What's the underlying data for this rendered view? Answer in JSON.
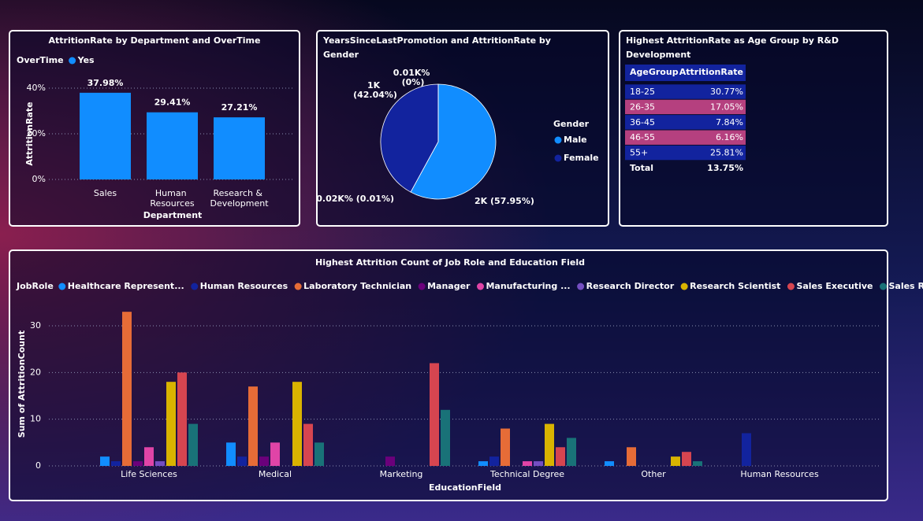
{
  "chart_data": [
    {
      "type": "bar",
      "title": "AttritionRate by Department and OverTime",
      "legend_title": "OverTime",
      "categories": [
        "Sales",
        "Human Resources",
        "Research & Development"
      ],
      "series": [
        {
          "name": "Yes",
          "color": "#118dff",
          "values": [
            37.98,
            29.41,
            27.21
          ],
          "value_labels": [
            "37.98%",
            "29.41%",
            "27.21%"
          ]
        }
      ],
      "ylim": [
        0,
        45
      ],
      "yticks": [
        {
          "value": 0,
          "label": "0%"
        },
        {
          "value": 20,
          "label": "20%"
        },
        {
          "value": 40,
          "label": "40%"
        }
      ],
      "y_label": "AttritionRate",
      "x_label": "Department",
      "grid": true
    },
    {
      "type": "pie",
      "title": "YearsSinceLastPromotion and AttritionRate by Gender",
      "legend_title": "Gender",
      "categories": [
        "Male",
        "Female",
        null,
        null
      ],
      "values": [
        57.95,
        42.04,
        0,
        0.01
      ],
      "value_labels": [
        "2K (57.95%)",
        "1K (42.04%)",
        "0.01K% (0%)",
        "0.02K% (0.01%)"
      ],
      "colors": [
        "#118dff",
        "#12239e",
        "#e66c37",
        "#6b007b"
      ]
    },
    {
      "type": "table",
      "title": "Highest AttritionRate as Age Group by R&D Development",
      "columns": [
        "AgeGroup",
        "AttritionRate"
      ],
      "rows": [
        [
          "18-25",
          "30.77%"
        ],
        [
          "26-35",
          "17.05%"
        ],
        [
          "36-45",
          "7.84%"
        ],
        [
          "46-55",
          "6.16%"
        ],
        [
          "55+",
          "25.81%"
        ]
      ],
      "total": [
        "Total",
        "13.75%"
      ]
    },
    {
      "type": "bar",
      "title": "Highest Attrition Count of Job Role and Education Field",
      "legend_title": "JobRole",
      "categories": [
        "Life Sciences",
        "Medical",
        "Marketing",
        "Technical Degree",
        "Other",
        "Human Resources"
      ],
      "series": [
        {
          "name": "Healthcare Represent...",
          "color": "#118dff",
          "values": [
            2,
            5,
            null,
            1,
            1,
            null
          ]
        },
        {
          "name": "Human Resources",
          "color": "#12239e",
          "values": [
            1,
            2,
            null,
            2,
            null,
            7
          ]
        },
        {
          "name": "Laboratory Technician",
          "color": "#e66c37",
          "values": [
            33,
            17,
            null,
            8,
            4,
            null
          ]
        },
        {
          "name": "Manager",
          "color": "#6b007b",
          "values": [
            1,
            2,
            2,
            null,
            null,
            null
          ]
        },
        {
          "name": "Manufacturing ...",
          "color": "#e044a7",
          "values": [
            4,
            5,
            null,
            1,
            null,
            null
          ]
        },
        {
          "name": "Research Director",
          "color": "#744ec2",
          "values": [
            1,
            null,
            null,
            1,
            null,
            null
          ]
        },
        {
          "name": "Research Scientist",
          "color": "#d9b300",
          "values": [
            18,
            18,
            null,
            9,
            2,
            null
          ]
        },
        {
          "name": "Sales Executive",
          "color": "#d64550",
          "values": [
            20,
            9,
            22,
            4,
            3,
            null
          ]
        },
        {
          "name": "Sales Repres...",
          "color": "#197278",
          "values": [
            9,
            5,
            12,
            6,
            1,
            null
          ]
        }
      ],
      "ylim": [
        0,
        35
      ],
      "yticks": [
        0,
        10,
        20,
        30
      ],
      "y_label": "Sum of AttritionCount",
      "x_label": "EducationField",
      "grid": true
    }
  ]
}
